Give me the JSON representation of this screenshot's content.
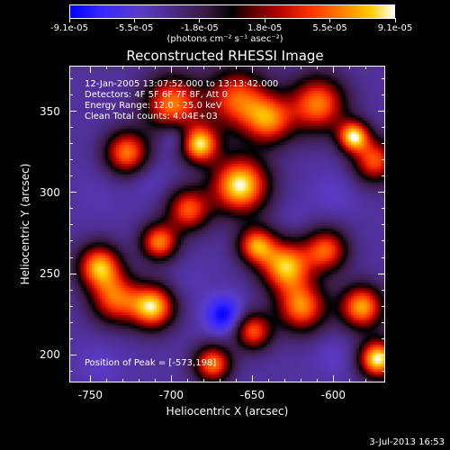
{
  "colorbar": {
    "ticks": [
      "-9.1e-05",
      "-5.5e-05",
      "-1.8e-05",
      "1.8e-05",
      "5.5e-05",
      "9.1e-05"
    ],
    "units": "(photons cm⁻² s⁻¹ asec⁻²)"
  },
  "title": "Reconstructed RHESSI Image",
  "info": {
    "time": "12-Jan-2005 13:07:52.000 to 13:13:42.000",
    "detectors": "Detectors: 4F 5F 6F 7F 8F, Att 0",
    "energy": "Energy Range: 12.0 - 25.0 keV",
    "clean": "Clean      Total counts: 4.04E+03",
    "peak": "Position of Peak = [-573,198]"
  },
  "axes": {
    "xlabel": "Heliocentric X (arcsec)",
    "ylabel": "Heliocentric Y (arcsec)",
    "x_ticks": [
      "-750",
      "-700",
      "-650",
      "-600"
    ],
    "y_ticks": [
      "200",
      "250",
      "300",
      "350"
    ],
    "xlim": [
      -763,
      -568
    ],
    "ylim": [
      183,
      378
    ]
  },
  "timestamp": "3-Jul-2013 16:53",
  "chart_data": {
    "type": "heatmap",
    "title": "Reconstructed RHESSI Image",
    "xlabel": "Heliocentric X (arcsec)",
    "ylabel": "Heliocentric Y (arcsec)",
    "xlim": [
      -763,
      -568
    ],
    "ylim": [
      183,
      378
    ],
    "zlim": [
      -9.1e-05,
      9.1e-05
    ],
    "peak": [
      -573,
      198
    ],
    "blobs": [
      {
        "x": -658,
        "y": 305,
        "r": 18,
        "v": 9e-05
      },
      {
        "x": -700,
        "y": 355,
        "r": 18,
        "v": 6e-05
      },
      {
        "x": -683,
        "y": 330,
        "r": 12,
        "v": 8e-05
      },
      {
        "x": -660,
        "y": 358,
        "r": 20,
        "v": 5e-05
      },
      {
        "x": -640,
        "y": 345,
        "r": 16,
        "v": 5e-05
      },
      {
        "x": -610,
        "y": 355,
        "r": 18,
        "v": 6e-05
      },
      {
        "x": -588,
        "y": 335,
        "r": 10,
        "v": 8e-05
      },
      {
        "x": -575,
        "y": 320,
        "r": 14,
        "v": 5e-05
      },
      {
        "x": -728,
        "y": 325,
        "r": 14,
        "v": 6e-05
      },
      {
        "x": -708,
        "y": 270,
        "r": 12,
        "v": 6e-05
      },
      {
        "x": -745,
        "y": 255,
        "r": 14,
        "v": 7e-05
      },
      {
        "x": -735,
        "y": 235,
        "r": 16,
        "v": 5e-05
      },
      {
        "x": -712,
        "y": 230,
        "r": 14,
        "v": 8e-05
      },
      {
        "x": -690,
        "y": 290,
        "r": 14,
        "v": 5e-05
      },
      {
        "x": -648,
        "y": 268,
        "r": 12,
        "v": 6e-05
      },
      {
        "x": -630,
        "y": 255,
        "r": 16,
        "v": 7.5e-05
      },
      {
        "x": -620,
        "y": 230,
        "r": 16,
        "v": 6e-05
      },
      {
        "x": -605,
        "y": 265,
        "r": 14,
        "v": 5e-05
      },
      {
        "x": -583,
        "y": 230,
        "r": 14,
        "v": 7e-05
      },
      {
        "x": -573,
        "y": 198,
        "r": 12,
        "v": 9.1e-05
      },
      {
        "x": -650,
        "y": 215,
        "r": 12,
        "v": 5e-05
      },
      {
        "x": -675,
        "y": 195,
        "r": 12,
        "v": 6e-05
      },
      {
        "x": -668,
        "y": 225,
        "r": 12,
        "v": -9e-05
      },
      {
        "x": -698,
        "y": 335,
        "r": 10,
        "v": -7e-05
      },
      {
        "x": -715,
        "y": 310,
        "r": 14,
        "v": -5e-05
      },
      {
        "x": -745,
        "y": 300,
        "r": 16,
        "v": -4.5e-05
      },
      {
        "x": -745,
        "y": 195,
        "r": 16,
        "v": -5e-05
      },
      {
        "x": -690,
        "y": 245,
        "r": 14,
        "v": -4.5e-05
      },
      {
        "x": -600,
        "y": 300,
        "r": 16,
        "v": -5e-05
      },
      {
        "x": -625,
        "y": 285,
        "r": 12,
        "v": -4.5e-05
      },
      {
        "x": -600,
        "y": 200,
        "r": 14,
        "v": -5e-05
      },
      {
        "x": -640,
        "y": 198,
        "r": 12,
        "v": -4e-05
      },
      {
        "x": -668,
        "y": 342,
        "r": 12,
        "v": -4e-05
      },
      {
        "x": -608,
        "y": 238,
        "r": 8,
        "v": -4e-05
      }
    ],
    "background": -4e-05
  }
}
